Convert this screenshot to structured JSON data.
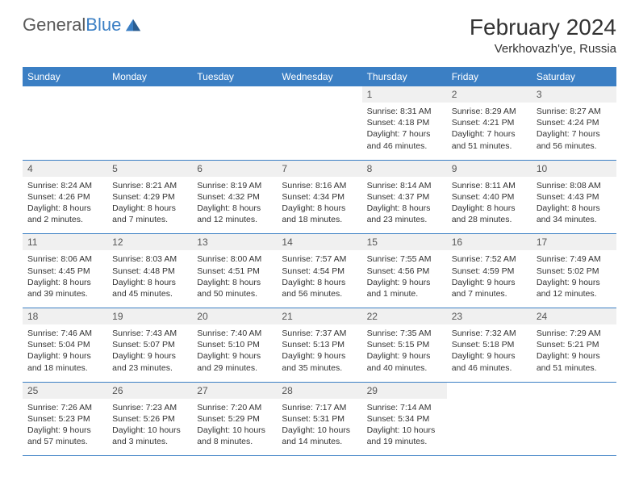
{
  "logo": {
    "word1": "General",
    "word2": "Blue"
  },
  "title": "February 2024",
  "subtitle": "Verkhovazh'ye, Russia",
  "colors": {
    "header_bg": "#3b7fc4",
    "header_text": "#ffffff",
    "daynum_bg": "#f0f0f0",
    "daynum_text": "#555555",
    "cell_text": "#333333",
    "divider": "#3b7fc4",
    "logo_gray": "#5a5a5a",
    "logo_blue": "#3b7fc4",
    "page_bg": "#ffffff"
  },
  "typography": {
    "title_fontsize": 28,
    "subtitle_fontsize": 15,
    "dayheader_fontsize": 12,
    "daynum_fontsize": 12,
    "cell_fontsize": 10.5,
    "font_family": "Arial"
  },
  "day_headers": [
    "Sunday",
    "Monday",
    "Tuesday",
    "Wednesday",
    "Thursday",
    "Friday",
    "Saturday"
  ],
  "weeks": [
    [
      {
        "num": "",
        "lines": []
      },
      {
        "num": "",
        "lines": []
      },
      {
        "num": "",
        "lines": []
      },
      {
        "num": "",
        "lines": []
      },
      {
        "num": "1",
        "lines": [
          "Sunrise: 8:31 AM",
          "Sunset: 4:18 PM",
          "Daylight: 7 hours",
          "and 46 minutes."
        ]
      },
      {
        "num": "2",
        "lines": [
          "Sunrise: 8:29 AM",
          "Sunset: 4:21 PM",
          "Daylight: 7 hours",
          "and 51 minutes."
        ]
      },
      {
        "num": "3",
        "lines": [
          "Sunrise: 8:27 AM",
          "Sunset: 4:24 PM",
          "Daylight: 7 hours",
          "and 56 minutes."
        ]
      }
    ],
    [
      {
        "num": "4",
        "lines": [
          "Sunrise: 8:24 AM",
          "Sunset: 4:26 PM",
          "Daylight: 8 hours",
          "and 2 minutes."
        ]
      },
      {
        "num": "5",
        "lines": [
          "Sunrise: 8:21 AM",
          "Sunset: 4:29 PM",
          "Daylight: 8 hours",
          "and 7 minutes."
        ]
      },
      {
        "num": "6",
        "lines": [
          "Sunrise: 8:19 AM",
          "Sunset: 4:32 PM",
          "Daylight: 8 hours",
          "and 12 minutes."
        ]
      },
      {
        "num": "7",
        "lines": [
          "Sunrise: 8:16 AM",
          "Sunset: 4:34 PM",
          "Daylight: 8 hours",
          "and 18 minutes."
        ]
      },
      {
        "num": "8",
        "lines": [
          "Sunrise: 8:14 AM",
          "Sunset: 4:37 PM",
          "Daylight: 8 hours",
          "and 23 minutes."
        ]
      },
      {
        "num": "9",
        "lines": [
          "Sunrise: 8:11 AM",
          "Sunset: 4:40 PM",
          "Daylight: 8 hours",
          "and 28 minutes."
        ]
      },
      {
        "num": "10",
        "lines": [
          "Sunrise: 8:08 AM",
          "Sunset: 4:43 PM",
          "Daylight: 8 hours",
          "and 34 minutes."
        ]
      }
    ],
    [
      {
        "num": "11",
        "lines": [
          "Sunrise: 8:06 AM",
          "Sunset: 4:45 PM",
          "Daylight: 8 hours",
          "and 39 minutes."
        ]
      },
      {
        "num": "12",
        "lines": [
          "Sunrise: 8:03 AM",
          "Sunset: 4:48 PM",
          "Daylight: 8 hours",
          "and 45 minutes."
        ]
      },
      {
        "num": "13",
        "lines": [
          "Sunrise: 8:00 AM",
          "Sunset: 4:51 PM",
          "Daylight: 8 hours",
          "and 50 minutes."
        ]
      },
      {
        "num": "14",
        "lines": [
          "Sunrise: 7:57 AM",
          "Sunset: 4:54 PM",
          "Daylight: 8 hours",
          "and 56 minutes."
        ]
      },
      {
        "num": "15",
        "lines": [
          "Sunrise: 7:55 AM",
          "Sunset: 4:56 PM",
          "Daylight: 9 hours",
          "and 1 minute."
        ]
      },
      {
        "num": "16",
        "lines": [
          "Sunrise: 7:52 AM",
          "Sunset: 4:59 PM",
          "Daylight: 9 hours",
          "and 7 minutes."
        ]
      },
      {
        "num": "17",
        "lines": [
          "Sunrise: 7:49 AM",
          "Sunset: 5:02 PM",
          "Daylight: 9 hours",
          "and 12 minutes."
        ]
      }
    ],
    [
      {
        "num": "18",
        "lines": [
          "Sunrise: 7:46 AM",
          "Sunset: 5:04 PM",
          "Daylight: 9 hours",
          "and 18 minutes."
        ]
      },
      {
        "num": "19",
        "lines": [
          "Sunrise: 7:43 AM",
          "Sunset: 5:07 PM",
          "Daylight: 9 hours",
          "and 23 minutes."
        ]
      },
      {
        "num": "20",
        "lines": [
          "Sunrise: 7:40 AM",
          "Sunset: 5:10 PM",
          "Daylight: 9 hours",
          "and 29 minutes."
        ]
      },
      {
        "num": "21",
        "lines": [
          "Sunrise: 7:37 AM",
          "Sunset: 5:13 PM",
          "Daylight: 9 hours",
          "and 35 minutes."
        ]
      },
      {
        "num": "22",
        "lines": [
          "Sunrise: 7:35 AM",
          "Sunset: 5:15 PM",
          "Daylight: 9 hours",
          "and 40 minutes."
        ]
      },
      {
        "num": "23",
        "lines": [
          "Sunrise: 7:32 AM",
          "Sunset: 5:18 PM",
          "Daylight: 9 hours",
          "and 46 minutes."
        ]
      },
      {
        "num": "24",
        "lines": [
          "Sunrise: 7:29 AM",
          "Sunset: 5:21 PM",
          "Daylight: 9 hours",
          "and 51 minutes."
        ]
      }
    ],
    [
      {
        "num": "25",
        "lines": [
          "Sunrise: 7:26 AM",
          "Sunset: 5:23 PM",
          "Daylight: 9 hours",
          "and 57 minutes."
        ]
      },
      {
        "num": "26",
        "lines": [
          "Sunrise: 7:23 AM",
          "Sunset: 5:26 PM",
          "Daylight: 10 hours",
          "and 3 minutes."
        ]
      },
      {
        "num": "27",
        "lines": [
          "Sunrise: 7:20 AM",
          "Sunset: 5:29 PM",
          "Daylight: 10 hours",
          "and 8 minutes."
        ]
      },
      {
        "num": "28",
        "lines": [
          "Sunrise: 7:17 AM",
          "Sunset: 5:31 PM",
          "Daylight: 10 hours",
          "and 14 minutes."
        ]
      },
      {
        "num": "29",
        "lines": [
          "Sunrise: 7:14 AM",
          "Sunset: 5:34 PM",
          "Daylight: 10 hours",
          "and 19 minutes."
        ]
      },
      {
        "num": "",
        "lines": []
      },
      {
        "num": "",
        "lines": []
      }
    ]
  ]
}
